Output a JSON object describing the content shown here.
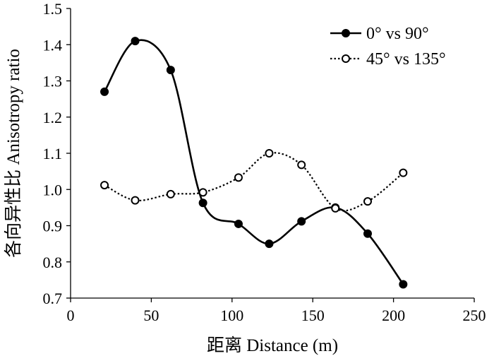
{
  "chart_data": {
    "type": "line",
    "xlabel": "距离 Distance (m)",
    "ylabel": "各向异性比 Anisotropy ratio",
    "xlim": [
      0,
      250
    ],
    "ylim": [
      0.7,
      1.5
    ],
    "x_ticks": [
      0,
      50,
      100,
      150,
      200,
      250
    ],
    "y_ticks": [
      0.7,
      0.8,
      0.9,
      1.0,
      1.1,
      1.2,
      1.3,
      1.4,
      1.5
    ],
    "y_tick_labels": [
      "0.7",
      "0.8",
      "0.9",
      "1.0",
      "1.1",
      "1.2",
      "1.3",
      "1.4",
      "1.5"
    ],
    "grid": false,
    "legend_position": "top-right",
    "series": [
      {
        "name": "0° vs 90°",
        "marker": "filled-circle",
        "line_style": "solid",
        "x": [
          21,
          40,
          62,
          82,
          104,
          123,
          143,
          164,
          184,
          206
        ],
        "y": [
          1.27,
          1.41,
          1.33,
          0.963,
          0.905,
          0.85,
          0.912,
          0.95,
          0.878,
          0.738
        ]
      },
      {
        "name": "45° vs 135°",
        "marker": "open-circle",
        "line_style": "dotted",
        "x": [
          21,
          40,
          62,
          82,
          104,
          123,
          143,
          164,
          184,
          206
        ],
        "y": [
          1.012,
          0.97,
          0.987,
          0.992,
          1.033,
          1.1,
          1.068,
          0.948,
          0.967,
          1.046
        ]
      }
    ]
  }
}
